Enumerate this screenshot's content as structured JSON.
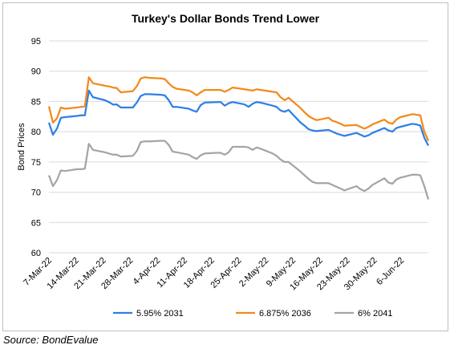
{
  "source": "Source: BondEvalue",
  "chart_data": {
    "type": "line",
    "title": "Turkey's Dollar Bonds Trend Lower",
    "xlabel": "",
    "ylabel": "Bond Prices",
    "ylim": [
      60,
      95
    ],
    "yticks": [
      60,
      65,
      70,
      75,
      80,
      85,
      90,
      95
    ],
    "grid": true,
    "legend_position": "bottom",
    "x_tick_labels": [
      "7-Mar-22",
      "14-Mar-22",
      "21-Mar-22",
      "28-Mar-22",
      "4-Apr-22",
      "11-Apr-22",
      "18-Apr-22",
      "25-Apr-22",
      "2-May-22",
      "9-May-22",
      "16-May-22",
      "23-May-22",
      "30-May-22",
      "6-Jun-22"
    ],
    "x_start": "2022-03-07",
    "x_end": "2022-06-10",
    "series": [
      {
        "name": "5.95% 2031",
        "color": "#2e7fe6",
        "points": [
          [
            "2022-03-07",
            81.5
          ],
          [
            "2022-03-08",
            79.5
          ],
          [
            "2022-03-09",
            80.5
          ],
          [
            "2022-03-10",
            82.3
          ],
          [
            "2022-03-11",
            82.4
          ],
          [
            "2022-03-14",
            82.6
          ],
          [
            "2022-03-15",
            82.7
          ],
          [
            "2022-03-16",
            82.7
          ],
          [
            "2022-03-17",
            86.8
          ],
          [
            "2022-03-18",
            85.7
          ],
          [
            "2022-03-21",
            85.2
          ],
          [
            "2022-03-22",
            84.9
          ],
          [
            "2022-03-23",
            84.5
          ],
          [
            "2022-03-24",
            84.5
          ],
          [
            "2022-03-25",
            84.0
          ],
          [
            "2022-03-28",
            84.0
          ],
          [
            "2022-03-29",
            84.8
          ],
          [
            "2022-03-30",
            85.9
          ],
          [
            "2022-03-31",
            86.2
          ],
          [
            "2022-04-01",
            86.2
          ],
          [
            "2022-04-04",
            86.1
          ],
          [
            "2022-04-05",
            86.0
          ],
          [
            "2022-04-06",
            85.2
          ],
          [
            "2022-04-07",
            84.1
          ],
          [
            "2022-04-08",
            84.1
          ],
          [
            "2022-04-11",
            83.8
          ],
          [
            "2022-04-12",
            83.5
          ],
          [
            "2022-04-13",
            83.3
          ],
          [
            "2022-04-14",
            84.4
          ],
          [
            "2022-04-15",
            84.8
          ],
          [
            "2022-04-18",
            84.9
          ],
          [
            "2022-04-19",
            84.9
          ],
          [
            "2022-04-20",
            84.3
          ],
          [
            "2022-04-21",
            84.7
          ],
          [
            "2022-04-22",
            84.9
          ],
          [
            "2022-04-25",
            84.5
          ],
          [
            "2022-04-26",
            84.1
          ],
          [
            "2022-04-27",
            84.6
          ],
          [
            "2022-04-28",
            84.9
          ],
          [
            "2022-04-29",
            84.8
          ],
          [
            "2022-05-02",
            84.3
          ],
          [
            "2022-05-03",
            84.1
          ],
          [
            "2022-05-04",
            83.5
          ],
          [
            "2022-05-05",
            83.3
          ],
          [
            "2022-05-06",
            83.6
          ],
          [
            "2022-05-09",
            81.5
          ],
          [
            "2022-05-10",
            81.0
          ],
          [
            "2022-05-11",
            80.4
          ],
          [
            "2022-05-12",
            80.2
          ],
          [
            "2022-05-13",
            80.1
          ],
          [
            "2022-05-16",
            80.3
          ],
          [
            "2022-05-17",
            80.0
          ],
          [
            "2022-05-18",
            79.7
          ],
          [
            "2022-05-19",
            79.5
          ],
          [
            "2022-05-20",
            79.3
          ],
          [
            "2022-05-23",
            79.8
          ],
          [
            "2022-05-24",
            79.5
          ],
          [
            "2022-05-25",
            79.2
          ],
          [
            "2022-05-26",
            79.4
          ],
          [
            "2022-05-27",
            79.8
          ],
          [
            "2022-05-30",
            80.6
          ],
          [
            "2022-05-31",
            80.2
          ],
          [
            "2022-06-01",
            80.0
          ],
          [
            "2022-06-02",
            80.6
          ],
          [
            "2022-06-03",
            80.8
          ],
          [
            "2022-06-06",
            81.3
          ],
          [
            "2022-06-07",
            81.2
          ],
          [
            "2022-06-08",
            81.0
          ],
          [
            "2022-06-09",
            79.0
          ],
          [
            "2022-06-10",
            77.7
          ]
        ]
      },
      {
        "name": "6.875% 2036",
        "color": "#f28a1c",
        "points": [
          [
            "2022-03-07",
            84.2
          ],
          [
            "2022-03-08",
            81.5
          ],
          [
            "2022-03-09",
            82.2
          ],
          [
            "2022-03-10",
            84.0
          ],
          [
            "2022-03-11",
            83.8
          ],
          [
            "2022-03-14",
            84.0
          ],
          [
            "2022-03-15",
            84.1
          ],
          [
            "2022-03-16",
            84.2
          ],
          [
            "2022-03-17",
            89.0
          ],
          [
            "2022-03-18",
            88.0
          ],
          [
            "2022-03-21",
            87.6
          ],
          [
            "2022-03-22",
            87.5
          ],
          [
            "2022-03-23",
            87.3
          ],
          [
            "2022-03-24",
            87.2
          ],
          [
            "2022-03-25",
            86.5
          ],
          [
            "2022-03-28",
            86.7
          ],
          [
            "2022-03-29",
            87.5
          ],
          [
            "2022-03-30",
            88.8
          ],
          [
            "2022-03-31",
            89.0
          ],
          [
            "2022-04-01",
            88.9
          ],
          [
            "2022-04-04",
            88.8
          ],
          [
            "2022-04-05",
            88.7
          ],
          [
            "2022-04-06",
            88.0
          ],
          [
            "2022-04-07",
            87.4
          ],
          [
            "2022-04-08",
            87.1
          ],
          [
            "2022-04-11",
            86.8
          ],
          [
            "2022-04-12",
            86.5
          ],
          [
            "2022-04-13",
            86.0
          ],
          [
            "2022-04-14",
            86.5
          ],
          [
            "2022-04-15",
            86.9
          ],
          [
            "2022-04-18",
            86.9
          ],
          [
            "2022-04-19",
            86.9
          ],
          [
            "2022-04-20",
            86.6
          ],
          [
            "2022-04-21",
            86.9
          ],
          [
            "2022-04-22",
            87.3
          ],
          [
            "2022-04-25",
            87.0
          ],
          [
            "2022-04-26",
            86.9
          ],
          [
            "2022-04-27",
            86.8
          ],
          [
            "2022-04-28",
            87.0
          ],
          [
            "2022-04-29",
            86.9
          ],
          [
            "2022-05-02",
            86.6
          ],
          [
            "2022-05-03",
            86.5
          ],
          [
            "2022-05-04",
            85.7
          ],
          [
            "2022-05-05",
            85.2
          ],
          [
            "2022-05-06",
            85.6
          ],
          [
            "2022-05-09",
            83.9
          ],
          [
            "2022-05-10",
            83.2
          ],
          [
            "2022-05-11",
            82.6
          ],
          [
            "2022-05-12",
            82.2
          ],
          [
            "2022-05-13",
            81.9
          ],
          [
            "2022-05-16",
            82.3
          ],
          [
            "2022-05-17",
            81.8
          ],
          [
            "2022-05-18",
            81.6
          ],
          [
            "2022-05-19",
            81.3
          ],
          [
            "2022-05-20",
            81.0
          ],
          [
            "2022-05-23",
            81.1
          ],
          [
            "2022-05-24",
            80.8
          ],
          [
            "2022-05-25",
            80.5
          ],
          [
            "2022-05-26",
            80.8
          ],
          [
            "2022-05-27",
            81.2
          ],
          [
            "2022-05-30",
            82.0
          ],
          [
            "2022-05-31",
            81.5
          ],
          [
            "2022-06-01",
            81.3
          ],
          [
            "2022-06-02",
            82.0
          ],
          [
            "2022-06-03",
            82.4
          ],
          [
            "2022-06-06",
            82.9
          ],
          [
            "2022-06-07",
            82.8
          ],
          [
            "2022-06-08",
            82.7
          ],
          [
            "2022-06-09",
            80.0
          ],
          [
            "2022-06-10",
            78.5
          ]
        ]
      },
      {
        "name": "6% 2041",
        "color": "#a5a5a5",
        "points": [
          [
            "2022-03-07",
            72.8
          ],
          [
            "2022-03-08",
            71.0
          ],
          [
            "2022-03-09",
            72.0
          ],
          [
            "2022-03-10",
            73.6
          ],
          [
            "2022-03-11",
            73.5
          ],
          [
            "2022-03-14",
            73.8
          ],
          [
            "2022-03-15",
            73.8
          ],
          [
            "2022-03-16",
            73.9
          ],
          [
            "2022-03-17",
            78.0
          ],
          [
            "2022-03-18",
            77.0
          ],
          [
            "2022-03-21",
            76.6
          ],
          [
            "2022-03-22",
            76.4
          ],
          [
            "2022-03-23",
            76.2
          ],
          [
            "2022-03-24",
            76.2
          ],
          [
            "2022-03-25",
            75.9
          ],
          [
            "2022-03-28",
            76.0
          ],
          [
            "2022-03-29",
            76.8
          ],
          [
            "2022-03-30",
            78.3
          ],
          [
            "2022-03-31",
            78.4
          ],
          [
            "2022-04-01",
            78.4
          ],
          [
            "2022-04-04",
            78.5
          ],
          [
            "2022-04-05",
            78.5
          ],
          [
            "2022-04-06",
            77.8
          ],
          [
            "2022-04-07",
            76.7
          ],
          [
            "2022-04-08",
            76.6
          ],
          [
            "2022-04-11",
            76.2
          ],
          [
            "2022-04-12",
            75.8
          ],
          [
            "2022-04-13",
            75.5
          ],
          [
            "2022-04-14",
            76.1
          ],
          [
            "2022-04-15",
            76.4
          ],
          [
            "2022-04-18",
            76.5
          ],
          [
            "2022-04-19",
            76.5
          ],
          [
            "2022-04-20",
            76.2
          ],
          [
            "2022-04-21",
            76.6
          ],
          [
            "2022-04-22",
            77.5
          ],
          [
            "2022-04-25",
            77.5
          ],
          [
            "2022-04-26",
            77.4
          ],
          [
            "2022-04-27",
            77.0
          ],
          [
            "2022-04-28",
            77.4
          ],
          [
            "2022-04-29",
            77.2
          ],
          [
            "2022-05-02",
            76.4
          ],
          [
            "2022-05-03",
            76.0
          ],
          [
            "2022-05-04",
            75.4
          ],
          [
            "2022-05-05",
            75.0
          ],
          [
            "2022-05-06",
            75.0
          ],
          [
            "2022-05-09",
            73.4
          ],
          [
            "2022-05-10",
            72.8
          ],
          [
            "2022-05-11",
            72.2
          ],
          [
            "2022-05-12",
            71.7
          ],
          [
            "2022-05-13",
            71.5
          ],
          [
            "2022-05-16",
            71.5
          ],
          [
            "2022-05-17",
            71.2
          ],
          [
            "2022-05-18",
            70.9
          ],
          [
            "2022-05-19",
            70.6
          ],
          [
            "2022-05-20",
            70.3
          ],
          [
            "2022-05-23",
            71.0
          ],
          [
            "2022-05-24",
            70.5
          ],
          [
            "2022-05-25",
            70.2
          ],
          [
            "2022-05-26",
            70.6
          ],
          [
            "2022-05-27",
            71.2
          ],
          [
            "2022-05-30",
            72.3
          ],
          [
            "2022-05-31",
            71.6
          ],
          [
            "2022-06-01",
            71.4
          ],
          [
            "2022-06-02",
            72.1
          ],
          [
            "2022-06-03",
            72.4
          ],
          [
            "2022-06-06",
            72.9
          ],
          [
            "2022-06-07",
            72.9
          ],
          [
            "2022-06-08",
            72.8
          ],
          [
            "2022-06-09",
            71.0
          ],
          [
            "2022-06-10",
            68.8
          ]
        ]
      }
    ]
  }
}
